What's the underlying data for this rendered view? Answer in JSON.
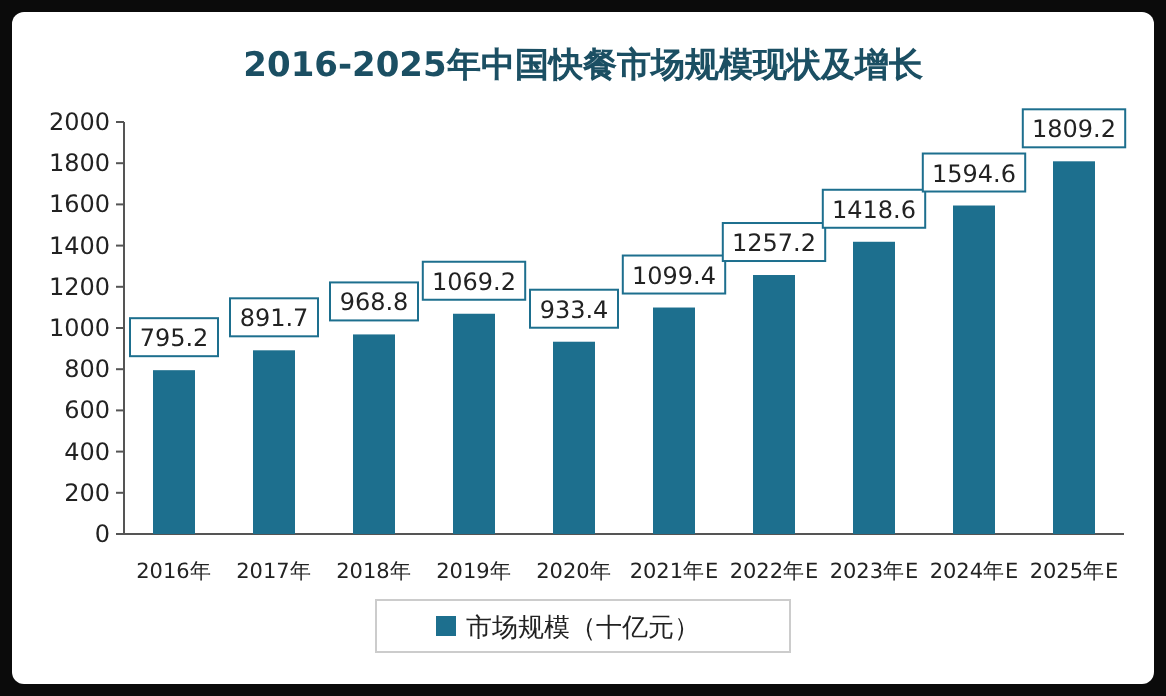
{
  "chart_data": {
    "type": "bar",
    "title": "2016-2025年中国快餐市场规模现状及增长",
    "categories": [
      "2016年",
      "2017年",
      "2018年",
      "2019年",
      "2020年",
      "2021年E",
      "2022年E",
      "2023年E",
      "2024年E",
      "2025年E"
    ],
    "series": [
      {
        "name": "市场规模（十亿元）",
        "color": "#1d6f8e",
        "values": [
          795.2,
          891.7,
          968.8,
          1069.2,
          933.4,
          1099.4,
          1257.2,
          1418.6,
          1594.6,
          1809.2
        ]
      }
    ],
    "ylim": [
      0,
      2000
    ],
    "yticks": [
      0,
      200,
      400,
      600,
      800,
      1000,
      1200,
      1400,
      1600,
      1800,
      2000
    ],
    "data_labels": true,
    "legend": "bottom",
    "grid": false
  }
}
